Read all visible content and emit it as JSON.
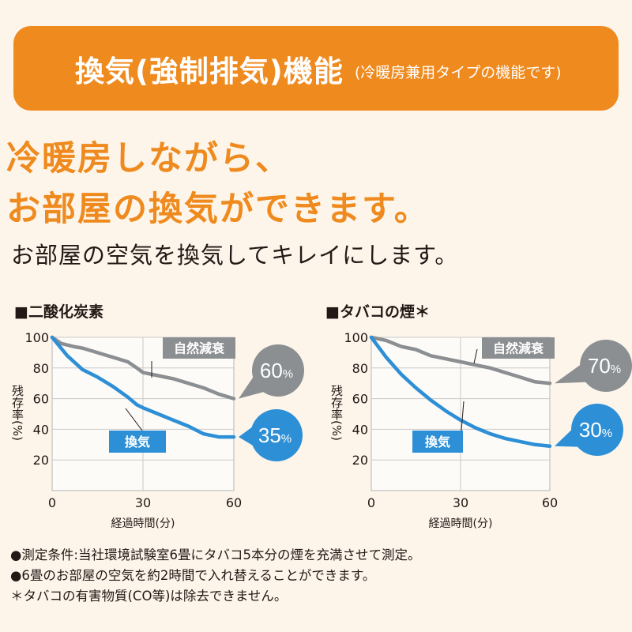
{
  "banner": {
    "title": "換気(強制排気)機能",
    "subtitle": "(冷暖房兼用タイプの機能です)"
  },
  "headline": {
    "line1": "冷暖房しながら、",
    "line2": "お部屋の換気ができます。"
  },
  "subline": "お部屋の空気を換気してキレイにします。",
  "colors": {
    "orange": "#ef8a1e",
    "gray_series": "#8b8f92",
    "blue_series": "#2d8fd6",
    "background": "#fdf5ea",
    "plot_bg": "#fdfbf7"
  },
  "chart_data": [
    {
      "type": "line",
      "title": "■二酸化炭素",
      "xlabel": "経過時間(分)",
      "ylabel": "残存率(%)",
      "xlim": [
        0,
        60
      ],
      "ylim": [
        0,
        100
      ],
      "xticks": [
        "0",
        "30",
        "60"
      ],
      "yticks": [
        "100",
        "80",
        "60",
        "40",
        "20"
      ],
      "grid": true,
      "series": [
        {
          "name": "自然減衰",
          "color": "#8b8f92",
          "x": [
            0,
            3,
            7,
            10,
            15,
            20,
            25,
            28,
            30,
            35,
            40,
            45,
            50,
            55,
            60
          ],
          "y": [
            100,
            96,
            94,
            93,
            90,
            87,
            84,
            80,
            77,
            75,
            73,
            70,
            67,
            63,
            60
          ],
          "end_label": "60%"
        },
        {
          "name": "換気",
          "color": "#2d8fd6",
          "x": [
            0,
            5,
            10,
            15,
            20,
            25,
            28,
            30,
            35,
            40,
            45,
            50,
            55,
            60
          ],
          "y": [
            100,
            88,
            79,
            74,
            68,
            61,
            56,
            54,
            50,
            46,
            42,
            37,
            35,
            35
          ],
          "end_label": "35%"
        }
      ]
    },
    {
      "type": "line",
      "title": "■タバコの煙＊",
      "xlabel": "経過時間(分)",
      "ylabel": "残存率(%)",
      "xlim": [
        0,
        60
      ],
      "ylim": [
        0,
        100
      ],
      "xticks": [
        "0",
        "30",
        "60"
      ],
      "yticks": [
        "100",
        "80",
        "60",
        "40",
        "20"
      ],
      "grid": true,
      "series": [
        {
          "name": "自然減衰",
          "color": "#8b8f92",
          "x": [
            0,
            5,
            10,
            15,
            20,
            25,
            30,
            35,
            40,
            45,
            50,
            55,
            60
          ],
          "y": [
            100,
            98,
            94,
            92,
            88,
            86,
            84,
            82,
            80,
            77,
            74,
            71,
            70
          ],
          "end_label": "70%"
        },
        {
          "name": "換気",
          "color": "#2d8fd6",
          "x": [
            0,
            5,
            10,
            15,
            20,
            25,
            30,
            35,
            40,
            45,
            50,
            55,
            60
          ],
          "y": [
            100,
            87,
            76,
            67,
            59,
            52,
            46,
            41,
            37,
            34,
            32,
            30,
            29
          ],
          "end_label": "30%"
        }
      ]
    }
  ],
  "notes": [
    "●測定条件:当社環境試験室6畳にタバコ5本分の煙を充満させて測定。",
    "●6畳のお部屋の空気を約2時間で入れ替えることができます。",
    "＊タバコの有害物質(CO等)は除去できません。"
  ]
}
